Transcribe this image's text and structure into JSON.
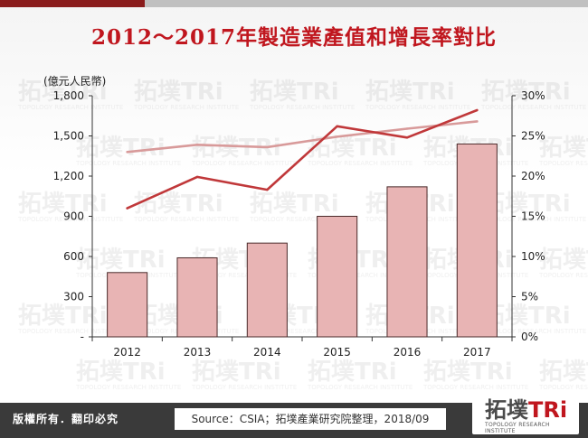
{
  "page": {
    "title": "2012～2017年製造業產值和增長率對比"
  },
  "chart_data": {
    "type": "bar",
    "categories": [
      "2012",
      "2013",
      "2014",
      "2015",
      "2016",
      "2017"
    ],
    "series": [
      {
        "name": "",
        "kind": "bar",
        "axis": "left",
        "values": [
          480,
          590,
          700,
          900,
          1120,
          1440
        ]
      },
      {
        "name": "",
        "kind": "line",
        "axis": "right",
        "values": [
          16.0,
          19.9,
          18.3,
          26.2,
          24.8,
          28.2
        ]
      },
      {
        "name": "",
        "kind": "line",
        "axis": "right",
        "values": [
          23.0,
          23.9,
          23.6,
          24.9,
          25.9,
          26.8
        ]
      }
    ],
    "ylabel": "(億元人民幣)",
    "ylim": [
      0,
      1800
    ],
    "yticks": [
      "-",
      "300",
      "600",
      "900",
      "1,200",
      "1,500",
      "1,800"
    ],
    "y2lim": [
      0,
      30
    ],
    "y2ticks": [
      "0%",
      "5%",
      "10%",
      "15%",
      "20%",
      "25%",
      "30%"
    ],
    "grid": false,
    "colors": {
      "bar_fill": "#e8b4b4",
      "bar_stroke": "#4a2a2a",
      "line_dark": "#c0383a",
      "line_light": "#d89a9a",
      "title": "#c0161e"
    }
  },
  "footer": {
    "rights": "版權所有．翻印必究",
    "source": "Source：CSIA；拓墣產業研究院整理，2018/09"
  },
  "logo": {
    "cn": "拓墣",
    "tri": "TRi",
    "sub": "TOPOLOGY RESEARCH INSTITUTE"
  },
  "watermark": {
    "cn": "拓墣",
    "tri": "TRi",
    "sub": "TOPOLOGY RESEARCH INSTITUTE"
  }
}
